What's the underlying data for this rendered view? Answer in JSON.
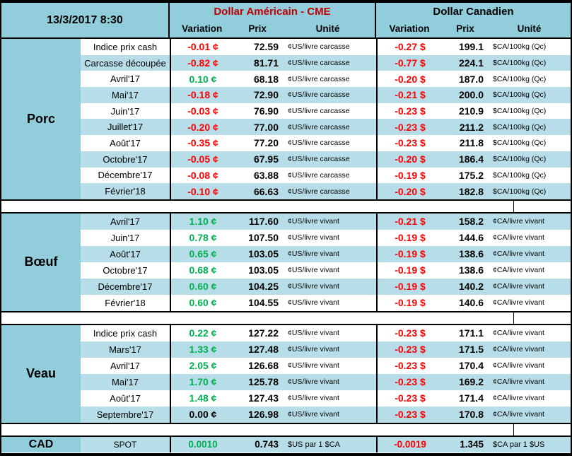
{
  "header": {
    "date": "13/3/2017 8:30",
    "us_title": "Dollar Américain - CME",
    "ca_title": "Dollar Canadien",
    "col_variation": "Variation",
    "col_prix": "Prix",
    "col_unite": "Unité"
  },
  "colors": {
    "header_blue": "#92CDDC",
    "row_blue": "#B7DEE8",
    "negative": "#FF0000",
    "positive": "#00B050",
    "us_title_red": "#C00000"
  },
  "sections": [
    {
      "label": "Porc",
      "us_unit": "¢US/livre carcasse",
      "ca_unit": "$CA/100kg (Qc)",
      "rows": [
        {
          "name": "Indice prix cash",
          "us_var": "-0.01 ¢",
          "us_dir": "down",
          "us_prix": "72.59",
          "ca_var": "-0.27 $",
          "ca_dir": "down",
          "ca_prix": "199.1",
          "shade": false
        },
        {
          "name": "Carcasse découpée",
          "us_var": "-0.82 ¢",
          "us_dir": "down",
          "us_prix": "81.71",
          "ca_var": "-0.77 $",
          "ca_dir": "down",
          "ca_prix": "224.1",
          "shade": true
        },
        {
          "name": "Avril'17",
          "us_var": "0.10 ¢",
          "us_dir": "up",
          "us_prix": "68.18",
          "ca_var": "-0.20 $",
          "ca_dir": "down",
          "ca_prix": "187.0",
          "shade": false
        },
        {
          "name": "Mai'17",
          "us_var": "-0.18 ¢",
          "us_dir": "down",
          "us_prix": "72.90",
          "ca_var": "-0.21 $",
          "ca_dir": "down",
          "ca_prix": "200.0",
          "shade": true
        },
        {
          "name": "Juin'17",
          "us_var": "-0.03 ¢",
          "us_dir": "down",
          "us_prix": "76.90",
          "ca_var": "-0.23 $",
          "ca_dir": "down",
          "ca_prix": "210.9",
          "shade": false
        },
        {
          "name": "Juillet'17",
          "us_var": "-0.20 ¢",
          "us_dir": "down",
          "us_prix": "77.00",
          "ca_var": "-0.23 $",
          "ca_dir": "down",
          "ca_prix": "211.2",
          "shade": true
        },
        {
          "name": "Août'17",
          "us_var": "-0.35 ¢",
          "us_dir": "down",
          "us_prix": "77.20",
          "ca_var": "-0.23 $",
          "ca_dir": "down",
          "ca_prix": "211.8",
          "shade": false
        },
        {
          "name": "Octobre'17",
          "us_var": "-0.05 ¢",
          "us_dir": "down",
          "us_prix": "67.95",
          "ca_var": "-0.20 $",
          "ca_dir": "down",
          "ca_prix": "186.4",
          "shade": true
        },
        {
          "name": "Décembre'17",
          "us_var": "-0.08 ¢",
          "us_dir": "down",
          "us_prix": "63.88",
          "ca_var": "-0.19 $",
          "ca_dir": "down",
          "ca_prix": "175.2",
          "shade": false
        },
        {
          "name": "Février'18",
          "us_var": "-0.10 ¢",
          "us_dir": "down",
          "us_prix": "66.63",
          "ca_var": "-0.20 $",
          "ca_dir": "down",
          "ca_prix": "182.8",
          "shade": true
        }
      ]
    },
    {
      "label": "Bœuf",
      "us_unit": "¢US/livre vivant",
      "ca_unit": "¢CA/livre vivant",
      "rows": [
        {
          "name": "Avril'17",
          "us_var": "1.10 ¢",
          "us_dir": "up",
          "us_prix": "117.60",
          "ca_var": "-0.21 $",
          "ca_dir": "down",
          "ca_prix": "158.2",
          "shade": true
        },
        {
          "name": "Juin'17",
          "us_var": "0.78 ¢",
          "us_dir": "up",
          "us_prix": "107.50",
          "ca_var": "-0.19 $",
          "ca_dir": "down",
          "ca_prix": "144.6",
          "shade": false
        },
        {
          "name": "Août'17",
          "us_var": "0.65 ¢",
          "us_dir": "up",
          "us_prix": "103.05",
          "ca_var": "-0.19 $",
          "ca_dir": "down",
          "ca_prix": "138.6",
          "shade": true
        },
        {
          "name": "Octobre'17",
          "us_var": "0.68 ¢",
          "us_dir": "up",
          "us_prix": "103.05",
          "ca_var": "-0.19 $",
          "ca_dir": "down",
          "ca_prix": "138.6",
          "shade": false
        },
        {
          "name": "Décembre'17",
          "us_var": "0.60 ¢",
          "us_dir": "up",
          "us_prix": "104.25",
          "ca_var": "-0.19 $",
          "ca_dir": "down",
          "ca_prix": "140.2",
          "shade": true
        },
        {
          "name": "Février'18",
          "us_var": "0.60 ¢",
          "us_dir": "up",
          "us_prix": "104.55",
          "ca_var": "-0.19 $",
          "ca_dir": "down",
          "ca_prix": "140.6",
          "shade": false
        }
      ]
    },
    {
      "label": "Veau",
      "us_unit": "¢US/livre vivant",
      "ca_unit": "¢CA/livre vivant",
      "rows": [
        {
          "name": "Indice prix cash",
          "us_var": "0.22 ¢",
          "us_dir": "up",
          "us_prix": "127.22",
          "ca_var": "-0.23 $",
          "ca_dir": "down",
          "ca_prix": "171.1",
          "shade": false
        },
        {
          "name": "Mars'17",
          "us_var": "1.33 ¢",
          "us_dir": "up",
          "us_prix": "127.48",
          "ca_var": "-0.23 $",
          "ca_dir": "down",
          "ca_prix": "171.5",
          "shade": true
        },
        {
          "name": "Avril'17",
          "us_var": "2.05 ¢",
          "us_dir": "up",
          "us_prix": "126.68",
          "ca_var": "-0.23 $",
          "ca_dir": "down",
          "ca_prix": "170.4",
          "shade": false
        },
        {
          "name": "Mai'17",
          "us_var": "1.70 ¢",
          "us_dir": "up",
          "us_prix": "125.78",
          "ca_var": "-0.23 $",
          "ca_dir": "down",
          "ca_prix": "169.2",
          "shade": true
        },
        {
          "name": "Août'17",
          "us_var": "1.48 ¢",
          "us_dir": "up",
          "us_prix": "127.43",
          "ca_var": "-0.23 $",
          "ca_dir": "down",
          "ca_prix": "171.4",
          "shade": false
        },
        {
          "name": "Septembre'17",
          "us_var": "0.00 ¢",
          "us_dir": "flat",
          "us_prix": "126.98",
          "ca_var": "-0.23 $",
          "ca_dir": "down",
          "ca_prix": "170.8",
          "shade": true
        }
      ]
    }
  ],
  "cad": {
    "label": "CAD",
    "name": "SPOT",
    "us_var": "0.0010",
    "us_dir": "up",
    "us_prix": "0.743",
    "us_unit": "$US par 1 $CA",
    "ca_var": "-0.0019",
    "ca_dir": "down",
    "ca_prix": "1.345",
    "ca_unit": "$CA par 1 $US"
  }
}
